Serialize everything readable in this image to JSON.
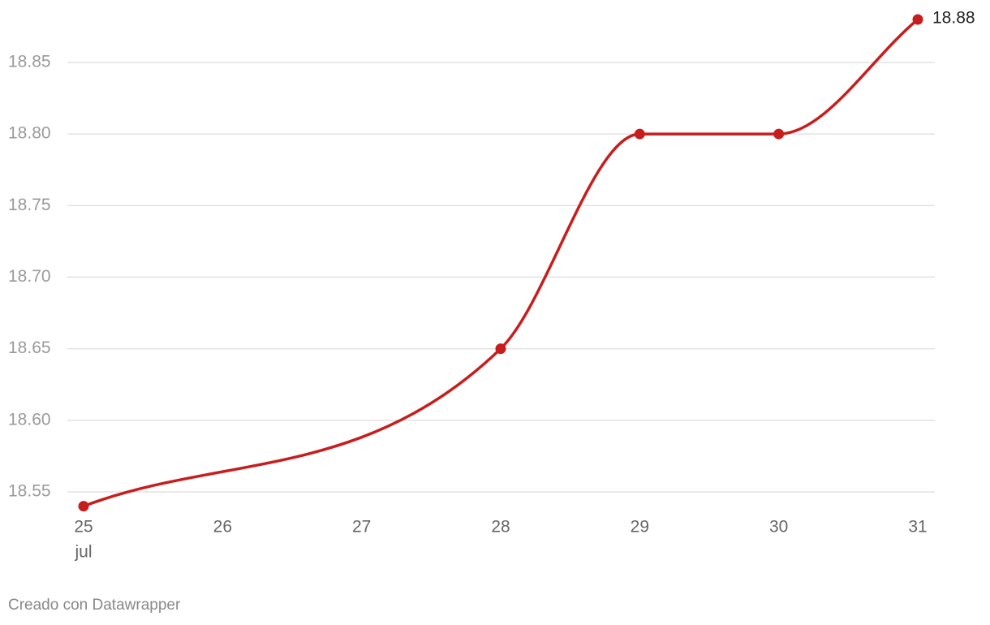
{
  "chart_data": {
    "type": "line",
    "x": [
      25,
      28,
      29,
      30,
      31
    ],
    "x_period_label": "jul",
    "series": [
      {
        "color": "#c71e1d",
        "values": [
          18.54,
          18.65,
          18.8,
          18.8,
          18.88
        ]
      }
    ],
    "xlim": [
      25,
      31
    ],
    "xticks": [
      25,
      26,
      27,
      28,
      29,
      30,
      31
    ],
    "ylim": [
      18.54,
      18.88
    ],
    "yticks": [
      18.55,
      {
        "value": 18.6,
        "label": "18.60"
      },
      18.65,
      {
        "value": 18.7,
        "label": "18.70"
      },
      18.75,
      {
        "value": 18.8,
        "label": "18.80"
      },
      18.85
    ],
    "grid": true,
    "last_value_label": true,
    "footer": "Creado con Datawrapper"
  }
}
